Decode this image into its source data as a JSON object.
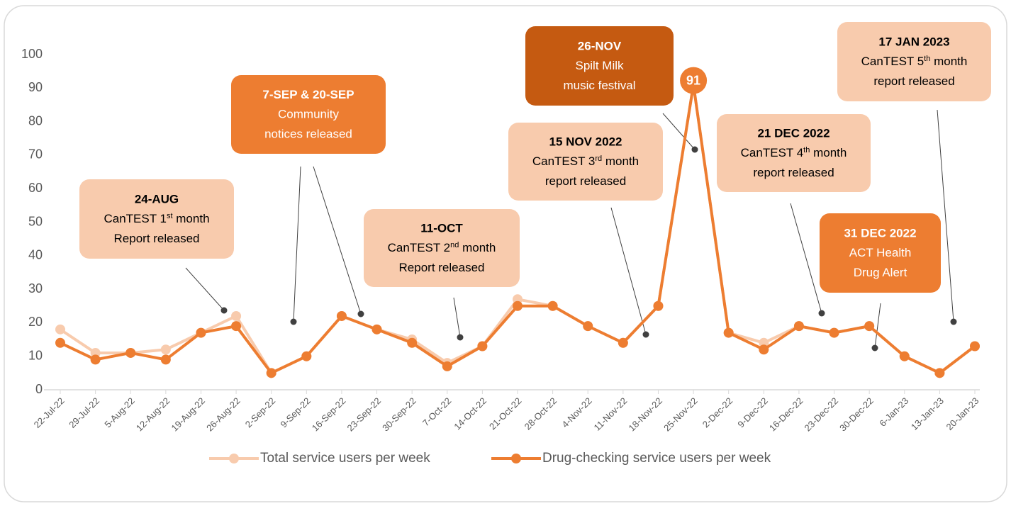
{
  "chart_data": {
    "type": "line",
    "categories": [
      "22-Jul-22",
      "29-Jul-22",
      "5-Aug-22",
      "12-Aug-22",
      "19-Aug-22",
      "26-Aug-22",
      "2-Sep-22",
      "9-Sep-22",
      "16-Sep-22",
      "23-Sep-22",
      "30-Sep-22",
      "7-Oct-22",
      "14-Oct-22",
      "21-Oct-22",
      "28-Oct-22",
      "4-Nov-22",
      "11-Nov-22",
      "18-Nov-22",
      "25-Nov-22",
      "2-Dec-22",
      "9-Dec-22",
      "16-Dec-22",
      "23-Dec-22",
      "30-Dec-22",
      "6-Jan-23",
      "13-Jan-23",
      "20-Jan-23"
    ],
    "series": [
      {
        "name": "Total service users per week",
        "color": "#F8CBAD",
        "values": [
          18,
          11,
          11,
          12,
          17,
          22,
          5,
          10,
          22,
          18,
          15,
          8,
          13,
          27,
          25,
          19,
          14,
          25,
          91,
          17,
          14,
          19,
          17,
          19,
          10,
          5,
          13
        ]
      },
      {
        "name": "Drug-checking service users per week",
        "color": "#ED7D31",
        "values": [
          14,
          9,
          11,
          9,
          17,
          19,
          5,
          10,
          22,
          18,
          14,
          7,
          13,
          25,
          25,
          19,
          14,
          25,
          91,
          17,
          12,
          19,
          17,
          19,
          10,
          5,
          13
        ]
      }
    ],
    "data_labels": [
      {
        "series": 1,
        "index": 18
      }
    ],
    "ylim": [
      0,
      100
    ],
    "yticks": [
      0,
      10,
      20,
      30,
      40,
      50,
      60,
      70,
      80,
      90,
      100
    ],
    "grid": false,
    "legend": "bottom",
    "annotations": [
      {
        "title": "24-AUG",
        "color": "#F8CBAD",
        "text_color": "#000000",
        "lines": [
          [
            {
              "t": "CanTEST 1"
            },
            {
              "t": "st",
              "sup": true
            },
            {
              "t": " month"
            }
          ],
          [
            {
              "t": "Report released"
            }
          ]
        ]
      },
      {
        "title": "7-SEP & 20-SEP",
        "color": "#ED7D31",
        "text_color": "#ffffff",
        "lines": [
          [
            {
              "t": "Community"
            }
          ],
          [
            {
              "t": "notices released"
            }
          ]
        ]
      },
      {
        "title": "11-OCT",
        "color": "#F8CBAD",
        "text_color": "#000000",
        "lines": [
          [
            {
              "t": "CanTEST 2"
            },
            {
              "t": "nd",
              "sup": true
            },
            {
              "t": " month"
            }
          ],
          [
            {
              "t": "Report released"
            }
          ]
        ]
      },
      {
        "title": "15 NOV 2022",
        "color": "#F8CBAD",
        "text_color": "#000000",
        "lines": [
          [
            {
              "t": "CanTEST 3"
            },
            {
              "t": "rd",
              "sup": true
            },
            {
              "t": " month"
            }
          ],
          [
            {
              "t": "report released"
            }
          ]
        ]
      },
      {
        "title": "26-NOV",
        "color": "#C55A11",
        "text_color": "#ffffff",
        "lines": [
          [
            {
              "t": "Spilt Milk"
            }
          ],
          [
            {
              "t": "music festival"
            }
          ]
        ]
      },
      {
        "title": "21 DEC 2022",
        "color": "#F8CBAD",
        "text_color": "#000000",
        "lines": [
          [
            {
              "t": "CanTEST 4"
            },
            {
              "t": "th",
              "sup": true
            },
            {
              "t": " month"
            }
          ],
          [
            {
              "t": "report released"
            }
          ]
        ]
      },
      {
        "title": "31 DEC 2022",
        "color": "#ED7D31",
        "text_color": "#ffffff",
        "lines": [
          [
            {
              "t": "ACT Health"
            }
          ],
          [
            {
              "t": "Drug Alert"
            }
          ]
        ]
      },
      {
        "title": "17 JAN 2023",
        "color": "#F8CBAD",
        "text_color": "#000000",
        "lines": [
          [
            {
              "t": "CanTEST 5"
            },
            {
              "t": "th",
              "sup": true
            },
            {
              "t": " month"
            }
          ],
          [
            {
              "t": "report released"
            }
          ]
        ]
      }
    ]
  }
}
